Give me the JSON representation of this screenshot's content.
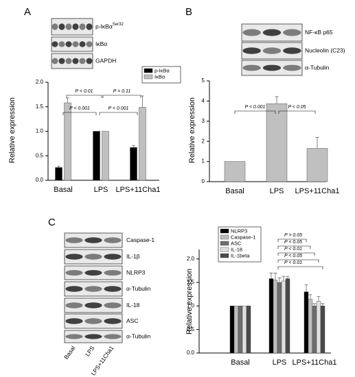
{
  "chart_data": [
    {
      "type": "bar",
      "panel": "A",
      "blot_labels": [
        "p-IκBα",
        "IκBα",
        "GAPDH"
      ],
      "blot_label_superscript": "Ser32",
      "categories": [
        "Basal",
        "LPS",
        "LPS+11Cha1"
      ],
      "series": [
        {
          "name": "p-IκBα",
          "color": "#000000",
          "values": [
            0.26,
            1.0,
            0.67
          ],
          "errors": [
            0.03,
            0,
            0.04
          ]
        },
        {
          "name": "IκBα",
          "color": "#c0c0c0",
          "values": [
            1.58,
            1.0,
            1.49
          ],
          "errors": [
            0.1,
            0,
            0.23
          ]
        }
      ],
      "ylabel": "Relative expression",
      "ylim": [
        0,
        2
      ],
      "yticks": [
        {
          "value": 0,
          "label": "0.0"
        },
        {
          "value": 0.5,
          "label": "0.5"
        },
        {
          "value": 1,
          "label": "1.0"
        },
        {
          "value": 1.5,
          "label": "1.5"
        },
        {
          "value": 2,
          "label": "2.0"
        }
      ],
      "annotations": [
        "P < 0.01",
        "P < 0.001",
        "P = 0.11",
        "P < 0.001"
      ],
      "legend": "upper right"
    },
    {
      "type": "bar",
      "panel": "B",
      "blot_labels": [
        "NF-κB p65",
        "Nucleolin (C23)",
        "α-Tubulin"
      ],
      "categories": [
        "Basal",
        "LPS",
        "LPS+11Cha1"
      ],
      "values": [
        1.0,
        3.87,
        1.65
      ],
      "errors": [
        0,
        0.35,
        0.55
      ],
      "color": "#c0c0c0",
      "ylabel": "Relative expression",
      "ylim": [
        0,
        5
      ],
      "yticks": [
        0,
        1,
        2,
        3,
        4,
        5
      ],
      "annotations": [
        "P < 0.001",
        "P < 0.05"
      ]
    },
    {
      "type": "bar",
      "panel": "C",
      "blot_labels": [
        "Caspase-1",
        "IL-1β",
        "NLRP3",
        "α-Tubulin",
        "IL-18",
        "ASC",
        "α-Tubulin"
      ],
      "blot_lanes": [
        "Basal",
        "LPS",
        "LPS+11Cha1"
      ],
      "categories": [
        "Basal",
        "LPS",
        "LPS+11Cha1"
      ],
      "series": [
        {
          "name": "NLRP3",
          "color": "#000000",
          "values": [
            1.0,
            1.58,
            1.3
          ],
          "errors": [
            0,
            0.12,
            0.15
          ]
        },
        {
          "name": "Caspase-1",
          "color": "#bdbdbd",
          "values": [
            1.0,
            1.55,
            1.14
          ],
          "errors": [
            0,
            0.15,
            0.1
          ]
        },
        {
          "name": "ASC",
          "color": "#6e6e6e",
          "values": [
            1.0,
            1.5,
            1.0
          ],
          "errors": [
            0,
            0.1,
            0.05
          ]
        },
        {
          "name": "IL-18",
          "color": "#e0e0e0",
          "values": [
            1.0,
            1.53,
            1.1
          ],
          "errors": [
            0,
            0.1,
            0.1
          ]
        },
        {
          "name": "IL-1beta",
          "color": "#4a4a4a",
          "values": [
            1.0,
            1.58,
            1.0
          ],
          "errors": [
            0,
            0.05,
            0.05
          ]
        }
      ],
      "ylabel": "Relative expression",
      "ylim": [
        0,
        2.2
      ],
      "yticks": [
        {
          "value": 0,
          "label": "0.0"
        },
        {
          "value": 0.5,
          "label": "0.5"
        },
        {
          "value": 1,
          "label": "1.0"
        },
        {
          "value": 1.5,
          "label": "1.5"
        },
        {
          "value": 2,
          "label": "2.0"
        }
      ],
      "annotations": [
        "P > 0.05",
        "P < 0.05",
        "P < 0.01",
        "P < 0.05",
        "P < 0.01"
      ],
      "legend": "upper left"
    }
  ]
}
